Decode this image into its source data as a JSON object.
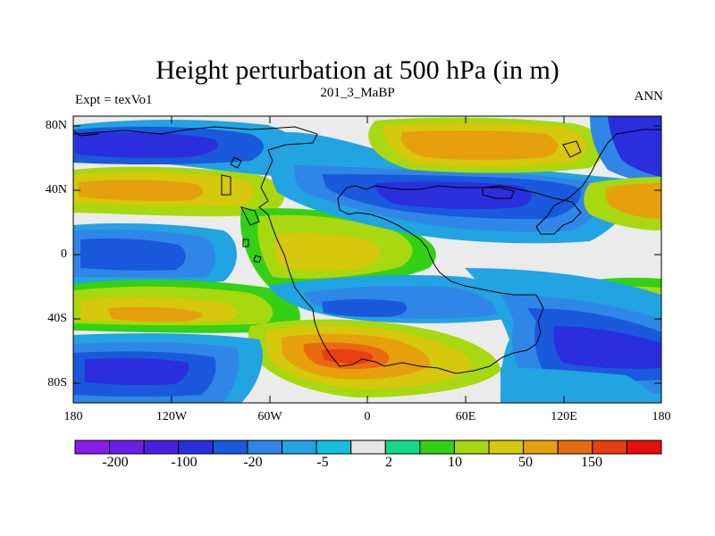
{
  "map": {
    "title": "Height perturbation at 500 hPa (in m)",
    "subtitle": "201_3_MaBP",
    "left_label": "Expt = texVo1",
    "right_label": "ANN",
    "lat_ticks": [
      "80N",
      "40N",
      "0",
      "40S",
      "80S"
    ],
    "lon_ticks": [
      "180",
      "120W",
      "60W",
      "0",
      "60E",
      "120E",
      "180"
    ]
  },
  "colorbar": {
    "colors": [
      "#8a1be8",
      "#6b1ee6",
      "#4a1fe0",
      "#2a2edc",
      "#1a58dc",
      "#2f86e6",
      "#22a3e2",
      "#12c0dd",
      "#e6e6e6",
      "#14d889",
      "#33d016",
      "#a8d80f",
      "#d6c80c",
      "#e6a00c",
      "#e86a12",
      "#e83e12",
      "#e80f0f"
    ],
    "labels": [
      "-200",
      "-100",
      "-20",
      "-5",
      "2",
      "10",
      "50",
      "150"
    ]
  }
}
